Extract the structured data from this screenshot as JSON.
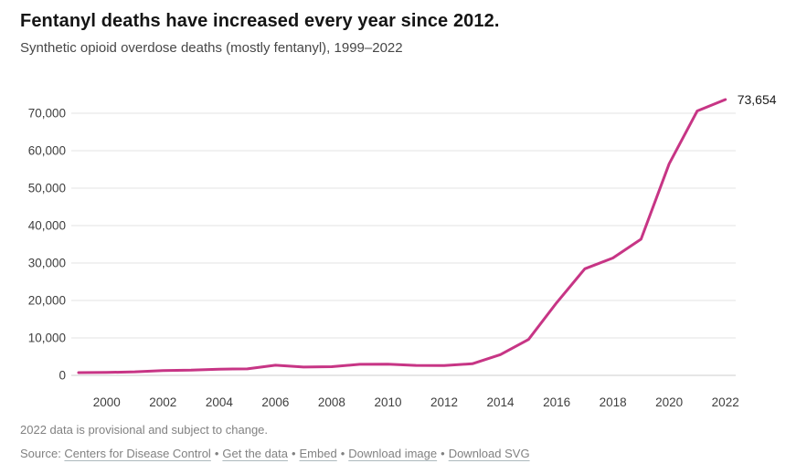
{
  "header": {
    "title": "Fentanyl deaths have increased every year since 2012.",
    "subtitle": "Synthetic opioid overdose deaths (mostly fentanyl), 1999–2022"
  },
  "chart_data": {
    "type": "line",
    "title": "Fentanyl deaths have increased every year since 2012.",
    "subtitle": "Synthetic opioid overdose deaths (mostly fentanyl), 1999–2022",
    "x": [
      1999,
      2000,
      2001,
      2002,
      2003,
      2004,
      2005,
      2006,
      2007,
      2008,
      2009,
      2010,
      2011,
      2012,
      2013,
      2014,
      2015,
      2016,
      2017,
      2018,
      2019,
      2020,
      2021,
      2022
    ],
    "series": [
      {
        "name": "Synthetic opioid overdose deaths (mostly fentanyl)",
        "values": [
          730,
          782,
          957,
          1295,
          1400,
          1664,
          1742,
          2707,
          2213,
          2306,
          2946,
          3007,
          2666,
          2628,
          3105,
          5544,
          9580,
          19413,
          28466,
          31335,
          36359,
          56516,
          70601,
          73654
        ]
      }
    ],
    "xlabel": "",
    "ylabel": "",
    "ylim": [
      0,
      70000
    ],
    "grid": "horizontal",
    "legend": "none",
    "line_color": "#c73585",
    "end_label": "73,654",
    "y_ticks": [
      {
        "value": 0,
        "label": "0"
      },
      {
        "value": 10000,
        "label": "10,000"
      },
      {
        "value": 20000,
        "label": "20,000"
      },
      {
        "value": 30000,
        "label": "30,000"
      },
      {
        "value": 40000,
        "label": "40,000"
      },
      {
        "value": 50000,
        "label": "50,000"
      },
      {
        "value": 60000,
        "label": "60,000"
      },
      {
        "value": 70000,
        "label": "70,000"
      }
    ],
    "x_ticks": [
      {
        "value": 2000,
        "label": "2000"
      },
      {
        "value": 2002,
        "label": "2002"
      },
      {
        "value": 2004,
        "label": "2004"
      },
      {
        "value": 2006,
        "label": "2006"
      },
      {
        "value": 2008,
        "label": "2008"
      },
      {
        "value": 2010,
        "label": "2010"
      },
      {
        "value": 2012,
        "label": "2012"
      },
      {
        "value": 2014,
        "label": "2014"
      },
      {
        "value": 2016,
        "label": "2016"
      },
      {
        "value": 2018,
        "label": "2018"
      },
      {
        "value": 2020,
        "label": "2020"
      },
      {
        "value": 2022,
        "label": "2022"
      }
    ]
  },
  "footer": {
    "note": "2022 data is provisional and subject to change.",
    "source_prefix": "Source: ",
    "separator": "•",
    "links": [
      {
        "label": "Centers for Disease Control"
      },
      {
        "label": "Get the data"
      },
      {
        "label": "Embed"
      },
      {
        "label": "Download image"
      },
      {
        "label": "Download SVG"
      }
    ]
  }
}
